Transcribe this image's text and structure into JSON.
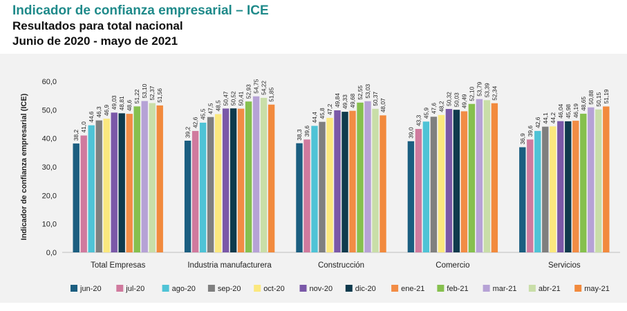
{
  "header": {
    "title": "Indicador de confianza empresarial – ICE",
    "subtitle": "Resultados para total nacional",
    "period": "Junio de 2020 - mayo de 2021"
  },
  "chart_data": {
    "type": "bar",
    "ylabel": "Indicador de confianza empresarial (ICE)",
    "ylim": [
      0,
      60
    ],
    "yticks": [
      "0,0",
      "10,0",
      "20,0",
      "30,0",
      "40,0",
      "50,0",
      "60,0"
    ],
    "categories": [
      "Total Empresas",
      "Industria manufacturera",
      "Construcción",
      "Comercio",
      "Servicios"
    ],
    "legend_position": "bottom",
    "series": [
      {
        "name": "jun-20",
        "color": "#1b5e80",
        "values": [
          38.2,
          39.2,
          38.3,
          39.0,
          36.9
        ],
        "labels": [
          "38,2",
          "39,2",
          "38,3",
          "39,0",
          "36,9"
        ]
      },
      {
        "name": "jul-20",
        "color": "#d07a9e",
        "values": [
          41.0,
          42.6,
          39.6,
          43.3,
          39.6
        ],
        "labels": [
          "41,0",
          "42,6",
          "39,6",
          "43,3",
          "39,6"
        ]
      },
      {
        "name": "ago-20",
        "color": "#4fc3d6",
        "values": [
          44.6,
          45.5,
          44.4,
          45.9,
          42.6
        ],
        "labels": [
          "44,6",
          "45,5",
          "44,4",
          "45,9",
          "42,6"
        ]
      },
      {
        "name": "sep-20",
        "color": "#7f7f7f",
        "values": [
          46.3,
          47.5,
          45.8,
          47.6,
          44.1
        ],
        "labels": [
          "46,3",
          "47,5",
          "45,8",
          "47,6",
          "44,1"
        ]
      },
      {
        "name": "oct-20",
        "color": "#fbe87e",
        "values": [
          46.9,
          48.5,
          47.2,
          48.2,
          44.2
        ],
        "labels": [
          "46,9",
          "48,5",
          "47,2",
          "48,2",
          "44,2"
        ]
      },
      {
        "name": "nov-20",
        "color": "#7a58a8",
        "values": [
          49.03,
          50.47,
          49.84,
          50.32,
          46.04
        ],
        "labels": [
          "49,03",
          "50,47",
          "49,84",
          "50,32",
          "46,04"
        ]
      },
      {
        "name": "dic-20",
        "color": "#0f3a4d",
        "values": [
          48.81,
          50.52,
          49.33,
          50.03,
          45.98
        ],
        "labels": [
          "48,81",
          "50,52",
          "49,33",
          "50,03",
          "45,98"
        ]
      },
      {
        "name": "ene-21",
        "color": "#f28c45",
        "values": [
          48.6,
          50.41,
          49.68,
          49.49,
          46.19
        ],
        "labels": [
          "48,6",
          "50,41",
          "49,68",
          "49,49",
          "46,19"
        ]
      },
      {
        "name": "feb-21",
        "color": "#86c04e",
        "values": [
          51.22,
          52.93,
          52.55,
          52.1,
          48.65
        ],
        "labels": [
          "51,22",
          "52,93",
          "52,55",
          "52,10",
          "48,65"
        ]
      },
      {
        "name": "mar-21",
        "color": "#b6a2d6",
        "values": [
          53.1,
          54.75,
          53.03,
          53.79,
          50.88
        ],
        "labels": [
          "53,10",
          "54,75",
          "53,03",
          "53,79",
          "50,88"
        ]
      },
      {
        "name": "abr-21",
        "color": "#c9dea8",
        "values": [
          52.37,
          54.22,
          50.37,
          53.39,
          50.15
        ],
        "labels": [
          "52,37",
          "54,22",
          "50,37",
          "53,39",
          "50,15"
        ]
      },
      {
        "name": "may-21",
        "color": "#f28a3d",
        "values": [
          51.56,
          51.85,
          48.07,
          52.34,
          51.19
        ],
        "labels": [
          "51,56",
          "51,85",
          "48,07",
          "52,34",
          "51,19"
        ]
      }
    ]
  }
}
